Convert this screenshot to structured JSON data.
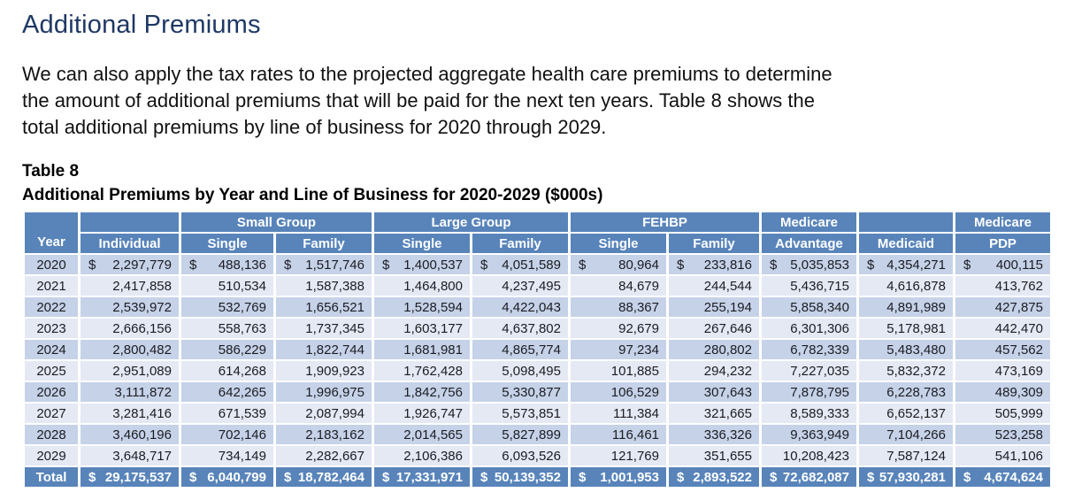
{
  "page": {
    "title": "Additional Premiums",
    "paragraph_lines": [
      "We can also apply the tax rates to the projected aggregate health care premiums to determine",
      "the amount of additional premiums that will be paid for the next ten years. Table 8 shows the",
      "total additional premiums by line of business for 2020 through 2029."
    ],
    "table_label": "Table 8",
    "table_caption": "Additional Premiums by Year and Line of Business for 2020-2029 ($000s)"
  },
  "colors": {
    "heading_navy": "#1f3864",
    "header_blue": "#5884ba",
    "band_dark": "#c5d2e8",
    "band_light": "#e4e9f4",
    "header_text": "#ffffff"
  },
  "table": {
    "currency_symbol": "$",
    "header": {
      "year": "Year",
      "individual": "Individual",
      "small_group": "Small Group",
      "large_group": "Large Group",
      "fehbp": "FEHBP",
      "medicare": "Medicare",
      "advantage": "Advantage",
      "medicaid": "Medicaid",
      "pdp": "PDP",
      "single": "Single",
      "family": "Family"
    },
    "rows": [
      {
        "year": "2020",
        "show_currency": true,
        "values": [
          "2,297,779",
          "488,136",
          "1,517,746",
          "1,400,537",
          "4,051,589",
          "80,964",
          "233,816",
          "5,035,853",
          "4,354,271",
          "400,115"
        ]
      },
      {
        "year": "2021",
        "show_currency": false,
        "values": [
          "2,417,858",
          "510,534",
          "1,587,388",
          "1,464,800",
          "4,237,495",
          "84,679",
          "244,544",
          "5,436,715",
          "4,616,878",
          "413,762"
        ]
      },
      {
        "year": "2022",
        "show_currency": false,
        "values": [
          "2,539,972",
          "532,769",
          "1,656,521",
          "1,528,594",
          "4,422,043",
          "88,367",
          "255,194",
          "5,858,340",
          "4,891,989",
          "427,875"
        ]
      },
      {
        "year": "2023",
        "show_currency": false,
        "values": [
          "2,666,156",
          "558,763",
          "1,737,345",
          "1,603,177",
          "4,637,802",
          "92,679",
          "267,646",
          "6,301,306",
          "5,178,981",
          "442,470"
        ]
      },
      {
        "year": "2024",
        "show_currency": false,
        "values": [
          "2,800,482",
          "586,229",
          "1,822,744",
          "1,681,981",
          "4,865,774",
          "97,234",
          "280,802",
          "6,782,339",
          "5,483,480",
          "457,562"
        ]
      },
      {
        "year": "2025",
        "show_currency": false,
        "values": [
          "2,951,089",
          "614,268",
          "1,909,923",
          "1,762,428",
          "5,098,495",
          "101,885",
          "294,232",
          "7,227,035",
          "5,832,372",
          "473,169"
        ]
      },
      {
        "year": "2026",
        "show_currency": false,
        "values": [
          "3,111,872",
          "642,265",
          "1,996,975",
          "1,842,756",
          "5,330,877",
          "106,529",
          "307,643",
          "7,878,795",
          "6,228,783",
          "489,309"
        ]
      },
      {
        "year": "2027",
        "show_currency": false,
        "values": [
          "3,281,416",
          "671,539",
          "2,087,994",
          "1,926,747",
          "5,573,851",
          "111,384",
          "321,665",
          "8,589,333",
          "6,652,137",
          "505,999"
        ]
      },
      {
        "year": "2028",
        "show_currency": false,
        "values": [
          "3,460,196",
          "702,146",
          "2,183,162",
          "2,014,565",
          "5,827,899",
          "116,461",
          "336,326",
          "9,363,949",
          "7,104,266",
          "523,258"
        ]
      },
      {
        "year": "2029",
        "show_currency": false,
        "values": [
          "3,648,717",
          "734,149",
          "2,282,667",
          "2,106,386",
          "6,093,526",
          "121,769",
          "351,655",
          "10,208,423",
          "7,587,124",
          "541,106"
        ]
      }
    ],
    "total": {
      "label": "Total",
      "show_currency": true,
      "values": [
        "29,175,537",
        "6,040,799",
        "18,782,464",
        "17,331,971",
        "50,139,352",
        "1,001,953",
        "2,893,522",
        "72,682,087",
        "57,930,281",
        "4,674,624"
      ]
    }
  }
}
